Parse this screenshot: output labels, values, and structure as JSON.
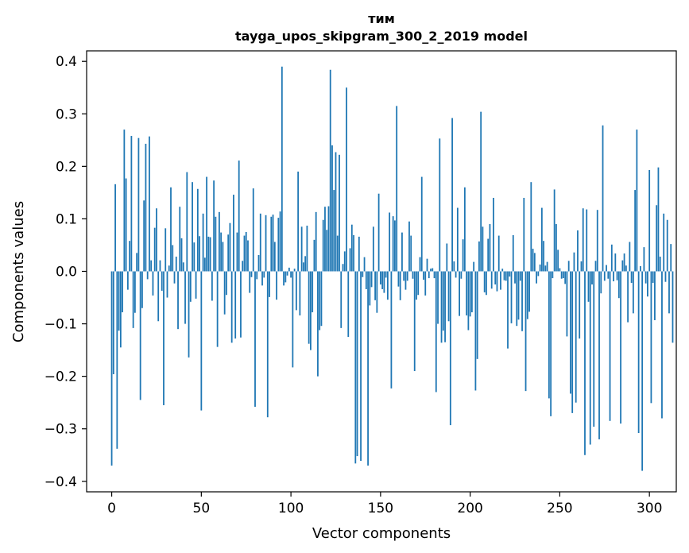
{
  "chart_data": {
    "type": "bar",
    "title_line1": "тим",
    "title_line2": "tayga_upos_skipgram_300_2_2019 model",
    "xlabel": "Vector components",
    "ylabel": "Components values",
    "xlim": [
      -14,
      315
    ],
    "ylim": [
      -0.42,
      0.42
    ],
    "xticks": [
      0,
      50,
      100,
      150,
      200,
      250,
      300
    ],
    "xtick_labels": [
      "0",
      "50",
      "100",
      "150",
      "200",
      "250",
      "300"
    ],
    "yticks": [
      -0.4,
      -0.3,
      -0.2,
      -0.1,
      0.0,
      0.1,
      0.2,
      0.3,
      0.4
    ],
    "ytick_labels": [
      "−0.4",
      "−0.3",
      "−0.2",
      "−0.1",
      "0.0",
      "0.1",
      "0.2",
      "0.3",
      "0.4"
    ],
    "bar_color": "#1f77b4",
    "values": [
      -0.37,
      -0.196,
      0.166,
      -0.338,
      -0.113,
      -0.145,
      -0.078,
      0.27,
      0.177,
      -0.035,
      0.058,
      0.258,
      -0.108,
      -0.079,
      0.035,
      0.254,
      -0.245,
      -0.07,
      0.135,
      0.243,
      -0.015,
      0.257,
      0.021,
      -0.046,
      0.083,
      0.12,
      -0.095,
      0.021,
      -0.037,
      -0.255,
      0.082,
      -0.05,
      0.011,
      0.16,
      0.05,
      -0.023,
      0.028,
      -0.11,
      0.123,
      0.063,
      0.017,
      -0.1,
      0.189,
      -0.164,
      -0.058,
      0.17,
      0.055,
      -0.052,
      0.157,
      0.067,
      -0.265,
      0.11,
      0.026,
      0.18,
      0.066,
      0.065,
      -0.056,
      0.173,
      0.104,
      -0.144,
      0.113,
      0.074,
      0.056,
      -0.082,
      -0.045,
      0.07,
      0.092,
      -0.136,
      0.146,
      -0.128,
      0.074,
      0.211,
      -0.126,
      0.02,
      0.068,
      0.075,
      0.059,
      -0.041,
      -0.011,
      0.158,
      -0.258,
      -0.015,
      0.031,
      0.11,
      -0.027,
      -0.012,
      0.107,
      -0.278,
      -0.049,
      0.104,
      0.108,
      0.056,
      -0.054,
      0.102,
      0.114,
      0.39,
      -0.027,
      -0.021,
      -0.008,
      0.007,
      -0.012,
      -0.183,
      0.005,
      -0.074,
      0.19,
      -0.084,
      0.085,
      0.017,
      0.029,
      0.087,
      -0.138,
      -0.15,
      -0.078,
      0.06,
      0.113,
      -0.2,
      -0.112,
      -0.104,
      0.098,
      0.123,
      0.079,
      0.124,
      0.384,
      0.24,
      0.155,
      0.227,
      0.068,
      0.222,
      -0.108,
      0.014,
      0.038,
      0.35,
      -0.125,
      0.044,
      0.089,
      0.069,
      -0.366,
      -0.352,
      0.066,
      -0.361,
      -0.011,
      0.027,
      -0.034,
      -0.37,
      -0.065,
      -0.03,
      0.085,
      -0.055,
      -0.079,
      0.148,
      -0.025,
      -0.034,
      -0.041,
      -0.012,
      -0.054,
      0.112,
      -0.223,
      0.105,
      0.097,
      0.315,
      -0.029,
      -0.055,
      0.074,
      -0.018,
      -0.035,
      -0.018,
      0.095,
      0.068,
      -0.014,
      -0.19,
      -0.054,
      -0.045,
      0.027,
      0.18,
      -0.016,
      -0.046,
      0.024,
      -0.013,
      0.005,
      0.006,
      -0.013,
      -0.23,
      -0.1,
      0.253,
      -0.136,
      -0.113,
      -0.135,
      0.053,
      -0.095,
      -0.293,
      0.292,
      0.019,
      -0.012,
      0.121,
      -0.085,
      -0.014,
      0.061,
      0.16,
      -0.084,
      -0.112,
      -0.086,
      -0.078,
      0.018,
      -0.227,
      -0.167,
      0.057,
      0.304,
      0.085,
      -0.04,
      -0.045,
      0.062,
      0.09,
      -0.033,
      0.14,
      -0.025,
      -0.038,
      0.068,
      -0.035,
      0.005,
      -0.017,
      -0.018,
      -0.147,
      -0.01,
      -0.099,
      0.069,
      -0.023,
      -0.104,
      -0.092,
      -0.018,
      -0.114,
      0.14,
      -0.228,
      -0.091,
      -0.077,
      0.17,
      0.043,
      0.035,
      -0.023,
      -0.009,
      0.013,
      0.121,
      0.058,
      0.011,
      0.018,
      -0.242,
      -0.276,
      -0.013,
      0.156,
      0.09,
      0.041,
      0.006,
      -0.014,
      -0.013,
      -0.024,
      -0.124,
      0.02,
      -0.233,
      -0.27,
      0.036,
      -0.25,
      0.078,
      -0.128,
      0.019,
      0.12,
      -0.35,
      0.118,
      -0.058,
      -0.33,
      -0.025,
      -0.296,
      0.02,
      0.117,
      -0.32,
      -0.042,
      0.278,
      -0.018,
      0.012,
      -0.014,
      -0.285,
      0.051,
      -0.019,
      0.034,
      -0.017,
      -0.051,
      -0.29,
      0.021,
      0.034,
      0.011,
      -0.097,
      0.056,
      -0.022,
      -0.08,
      0.155,
      0.27,
      -0.308,
      0.01,
      -0.38,
      0.046,
      -0.023,
      -0.048,
      0.193,
      -0.251,
      -0.022,
      -0.093,
      0.126,
      0.198,
      0.028,
      -0.28,
      0.11,
      -0.02,
      0.098,
      -0.08,
      0.052,
      -0.136
    ]
  }
}
